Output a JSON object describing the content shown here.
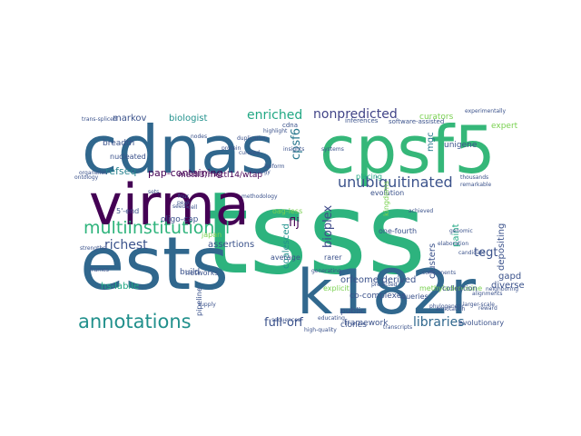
{
  "wordcloud": {
    "words": [
      {
        "text": "tsss",
        "color": "#2db37e"
      },
      {
        "text": "cdnas",
        "color": "#30678d"
      },
      {
        "text": "ests",
        "color": "#30678d"
      },
      {
        "text": "cpsf5",
        "color": "#35b779"
      },
      {
        "text": "virma",
        "color": "#440154"
      },
      {
        "text": "k182r",
        "color": "#31688e"
      },
      {
        "text": "annotations",
        "color": "#21908c"
      },
      {
        "text": "multiinstitutional",
        "color": "#2fb47c"
      },
      {
        "text": "unubiquitinated",
        "color": "#3b528b"
      },
      {
        "text": "nonpredicted",
        "color": "#414487"
      },
      {
        "text": "enriched",
        "color": "#22a884"
      },
      {
        "text": "cpsf6",
        "color": "#2a788e"
      },
      {
        "text": "bioplex",
        "color": "#3e4a89"
      },
      {
        "text": "richest",
        "color": "#3b528b"
      },
      {
        "text": "libraries",
        "color": "#31688e"
      },
      {
        "text": "full-orf",
        "color": "#3b528b"
      },
      {
        "text": "flj",
        "color": "#440154"
      },
      {
        "text": "tegt",
        "color": "#3b528b"
      },
      {
        "text": "pap-containing",
        "color": "#440154"
      },
      {
        "text": "refseq",
        "color": "#26828e"
      },
      {
        "text": "markov",
        "color": "#3b528b"
      },
      {
        "text": "biologist",
        "color": "#21918c"
      },
      {
        "text": "mettl3/mettl14/wtap",
        "color": "#440154"
      },
      {
        "text": "assertions",
        "color": "#3b528b"
      },
      {
        "text": "unigene",
        "color": "#3b528b"
      },
      {
        "text": "mgc",
        "color": "#2a788e"
      },
      {
        "text": "gapd",
        "color": "#3b528b"
      },
      {
        "text": "depositing",
        "color": "#3b528b"
      },
      {
        "text": "coalesced",
        "color": "#21918c"
      },
      {
        "text": "hs-labile",
        "color": "#22a884"
      },
      {
        "text": "orfeome-derived",
        "color": "#3b528b"
      },
      {
        "text": "co-complexes",
        "color": "#3b528b"
      },
      {
        "text": "framework",
        "color": "#3b528b"
      },
      {
        "text": "curators",
        "color": "#7ad151"
      },
      {
        "text": "expert",
        "color": "#7ad151"
      },
      {
        "text": "clusters",
        "color": "#3b528b"
      },
      {
        "text": "diverse",
        "color": "#3b528b"
      },
      {
        "text": "paint",
        "color": "#22a884"
      },
      {
        "text": "breadth",
        "color": "#3b528b"
      },
      {
        "text": "nucleated",
        "color": "#3b528b"
      },
      {
        "text": "oligo-cap",
        "color": "#3b528b"
      },
      {
        "text": "networks",
        "color": "#3b528b"
      },
      {
        "text": "average",
        "color": "#3b528b"
      },
      {
        "text": "explicit",
        "color": "#7ad151"
      },
      {
        "text": "public",
        "color": "#3b528b"
      },
      {
        "text": "clones",
        "color": "#3b528b"
      },
      {
        "text": "build",
        "color": "#3b528b"
      },
      {
        "text": "placing",
        "color": "#22a884"
      },
      {
        "text": "evolution",
        "color": "#3b528b"
      },
      {
        "text": "rarer",
        "color": "#3b528b"
      },
      {
        "text": "queries",
        "color": "#3b528b"
      },
      {
        "text": "methyladenosine",
        "color": "#7ad151"
      },
      {
        "text": "one-fourth",
        "color": "#3b528b"
      },
      {
        "text": "evolutionary",
        "color": "#3b528b"
      },
      {
        "text": "collection",
        "color": "#3b528b"
      },
      {
        "text": "5'-end",
        "color": "#3b528b"
      },
      {
        "text": "pipeline",
        "color": "#3b528b"
      },
      {
        "text": "software-assisted",
        "color": "#3b528b"
      },
      {
        "text": "inferences",
        "color": "#3b528b"
      },
      {
        "text": "japan",
        "color": "#7ad151"
      },
      {
        "text": "oag-less",
        "color": "#7ad151"
      },
      {
        "text": "kingdoms",
        "color": "#7ad151"
      },
      {
        "text": "ontology",
        "color": "#3b528b"
      },
      {
        "text": "experimentally",
        "color": "#3b528b"
      },
      {
        "text": "trans-spliced",
        "color": "#3b528b"
      },
      {
        "text": "cdna",
        "color": "#3b528b"
      },
      {
        "text": "highlight",
        "color": "#3b528b"
      },
      {
        "text": "thousands",
        "color": "#3b528b"
      },
      {
        "text": "larger-scale",
        "color": "#3b528b"
      },
      {
        "text": "high-quality",
        "color": "#3b528b"
      },
      {
        "text": "generating",
        "color": "#3b528b"
      },
      {
        "text": "methodology",
        "color": "#3b528b"
      },
      {
        "text": "components",
        "color": "#3b528b"
      },
      {
        "text": "educating",
        "color": "#3b528b"
      },
      {
        "text": "genomic",
        "color": "#3b528b"
      },
      {
        "text": "alignments",
        "color": "#3b528b"
      },
      {
        "text": "strengths",
        "color": "#3b528b"
      },
      {
        "text": "organelles",
        "color": "#3b528b"
      },
      {
        "text": "achieved",
        "color": "#3b528b"
      },
      {
        "text": "candidate",
        "color": "#3b528b"
      },
      {
        "text": "reward",
        "color": "#3b528b"
      },
      {
        "text": "neighboring",
        "color": "#3b528b"
      },
      {
        "text": "supply",
        "color": "#3b528b"
      },
      {
        "text": "seeds",
        "color": "#3b528b"
      },
      {
        "text": "nodes",
        "color": "#3b528b"
      },
      {
        "text": "frames",
        "color": "#3b528b"
      },
      {
        "text": "systems",
        "color": "#3b528b"
      },
      {
        "text": "insights",
        "color": "#3b528b"
      },
      {
        "text": "four",
        "color": "#3b528b"
      },
      {
        "text": "peak",
        "color": "#3b528b"
      },
      {
        "text": "cell",
        "color": "#3b528b"
      },
      {
        "text": "sets",
        "color": "#3b528b"
      },
      {
        "text": "biology",
        "color": "#3b528b"
      },
      {
        "text": "elaboration",
        "color": "#3b528b"
      },
      {
        "text": "predicted",
        "color": "#3b528b"
      },
      {
        "text": "phylogenetic",
        "color": "#3b528b"
      },
      {
        "text": "annotation",
        "color": "#3b528b"
      },
      {
        "text": "remarkable",
        "color": "#3b528b"
      },
      {
        "text": "curated",
        "color": "#3b528b"
      },
      {
        "text": "duplication",
        "color": "#3b528b"
      },
      {
        "text": "transcripts",
        "color": "#3b528b"
      },
      {
        "text": "isoform",
        "color": "#3b528b"
      },
      {
        "text": "protein",
        "color": "#3b528b"
      },
      {
        "text": "sequences",
        "color": "#3b528b"
      }
    ]
  }
}
